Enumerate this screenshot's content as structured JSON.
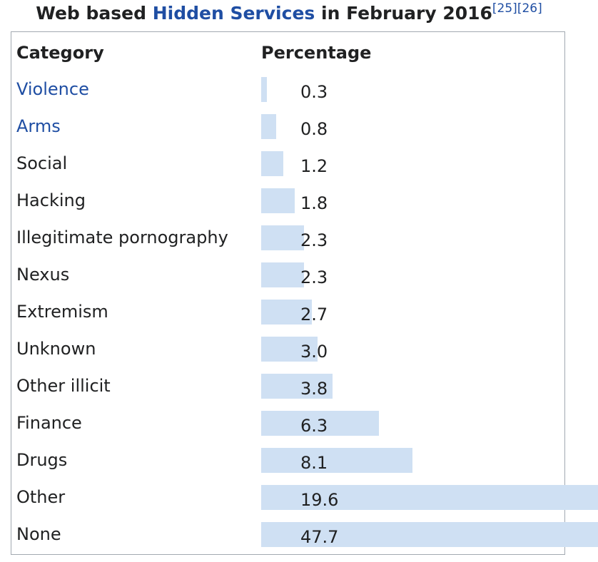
{
  "header": {
    "title_before": "Web based",
    "title_link": "Hidden Services",
    "title_after": "in February 2016",
    "refs": [
      "[25]",
      "[26]"
    ]
  },
  "table": {
    "columns": [
      "Category",
      "Percentage"
    ],
    "rows": [
      {
        "category": "Violence",
        "link": true,
        "percentage": 0.3
      },
      {
        "category": "Arms",
        "link": true,
        "percentage": 0.8
      },
      {
        "category": "Social",
        "percentage": 1.2
      },
      {
        "category": "Hacking",
        "percentage": 1.8
      },
      {
        "category": "Illegitimate pornography",
        "percentage": 2.3
      },
      {
        "category": "Nexus",
        "percentage": 2.3
      },
      {
        "category": "Extremism",
        "percentage": 2.7
      },
      {
        "category": "Unknown",
        "percentage": 3,
        "percentage_label": "3.0"
      },
      {
        "category": "Other illicit",
        "percentage": 3.8
      },
      {
        "category": "Finance",
        "percentage": 6.3
      },
      {
        "category": "Drugs",
        "percentage": 8.1
      },
      {
        "category": "Other",
        "percentage": 19.6
      },
      {
        "category": "None",
        "percentage": 47.7
      }
    ]
  }
}
